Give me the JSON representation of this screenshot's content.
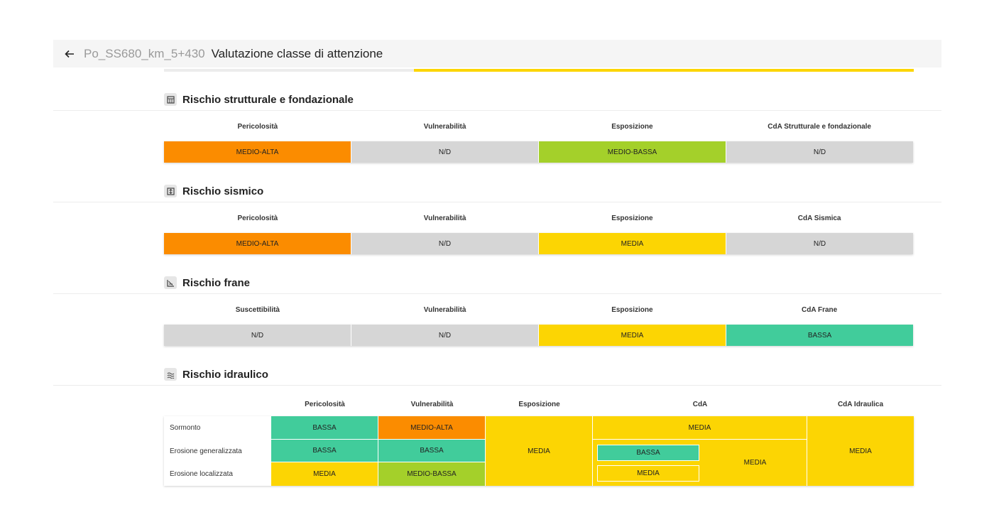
{
  "header": {
    "back_icon": "arrow-left-icon",
    "breadcrumb": "Po_SS680_km_5+430",
    "title": "Valutazione classe di attenzione"
  },
  "colors": {
    "orange": "#fb8c00",
    "grey": "#d6d6d6",
    "light_green": "#a4d02a",
    "yellow": "#fcd503",
    "green": "#41cc9b"
  },
  "sections": {
    "strutturale": {
      "title": "Rischio strutturale e fondazionale",
      "icon": "building-icon",
      "headers": [
        "Pericolosità",
        "Vulnerabilità",
        "Esposizione",
        "CdA Strutturale e fondazionale"
      ],
      "values": [
        "MEDIO-ALTA",
        "N/D",
        "MEDIO-BASSA",
        "N/D"
      ]
    },
    "sismico": {
      "title": "Rischio sismico",
      "icon": "seismic-icon",
      "headers": [
        "Pericolosità",
        "Vulnerabilità",
        "Esposizione",
        "CdA Sismica"
      ],
      "values": [
        "MEDIO-ALTA",
        "N/D",
        "MEDIA",
        "N/D"
      ]
    },
    "frane": {
      "title": "Rischio frane",
      "icon": "landslide-icon",
      "headers": [
        "Suscettibilità",
        "Vulnerabilità",
        "Esposizione",
        "CdA Frane"
      ],
      "values": [
        "N/D",
        "N/D",
        "MEDIA",
        "BASSA"
      ]
    },
    "idraulico": {
      "title": "Rischio idraulico",
      "icon": "water-icon",
      "headers": [
        "Pericolosità",
        "Vulnerabilità",
        "Esposizione",
        "CdA",
        "CdA Idraulica"
      ],
      "rows": [
        {
          "label": "Sormonto",
          "pericolosita": "BASSA",
          "vulnerabilita": "MEDIO-ALTA"
        },
        {
          "label": "Erosione generalizzata",
          "pericolosita": "BASSA",
          "vulnerabilita": "BASSA"
        },
        {
          "label": "Erosione localizzata",
          "pericolosita": "MEDIA",
          "vulnerabilita": "MEDIO-BASSA"
        }
      ],
      "esposizione": "MEDIA",
      "cda_sormonto": "MEDIA",
      "cda_erosione_generalizzata": "BASSA",
      "cda_erosione_localizzata": "MEDIA",
      "cda_erosione": "MEDIA",
      "cda_idraulica": "MEDIA"
    }
  }
}
